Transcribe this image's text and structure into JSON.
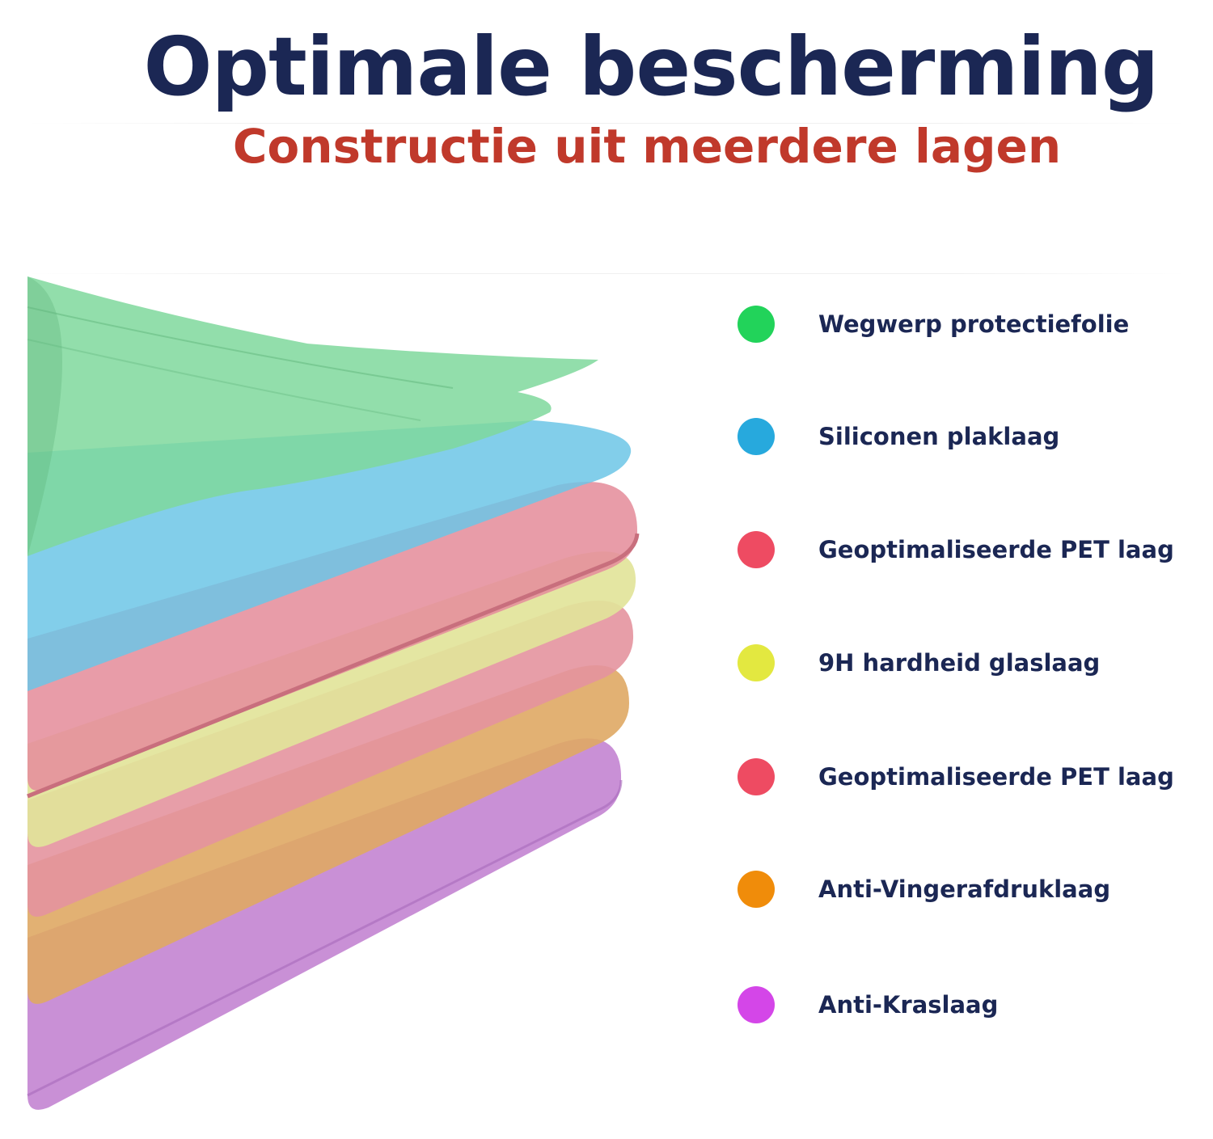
{
  "header": {
    "title": "Optimale bescherming",
    "subtitle": "Constructie uit meerdere lagen"
  },
  "layers": [
    {
      "label": "Wegwerp protectiefolie",
      "dot_color": "#22d35a",
      "fill": "#7fd89c"
    },
    {
      "label": "Siliconen plaklaag",
      "dot_color": "#27a9dd",
      "fill": "#6cc5e6"
    },
    {
      "label": "Geoptimaliseerde PET laag",
      "dot_color": "#ee4b62",
      "fill": "#e58e9c"
    },
    {
      "label": "9H hardheid glaslaag",
      "dot_color": "#e3e840",
      "fill": "#e2e49a"
    },
    {
      "label": "Geoptimaliseerde PET laag",
      "dot_color": "#ee4b62",
      "fill": "#e4949f"
    },
    {
      "label": "Anti-Vingerafdruklaag",
      "dot_color": "#f08c0a",
      "fill": "#dfa864"
    },
    {
      "label": "Anti-Kraslaag",
      "dot_color": "#d446e8",
      "fill": "#c487d3"
    }
  ]
}
